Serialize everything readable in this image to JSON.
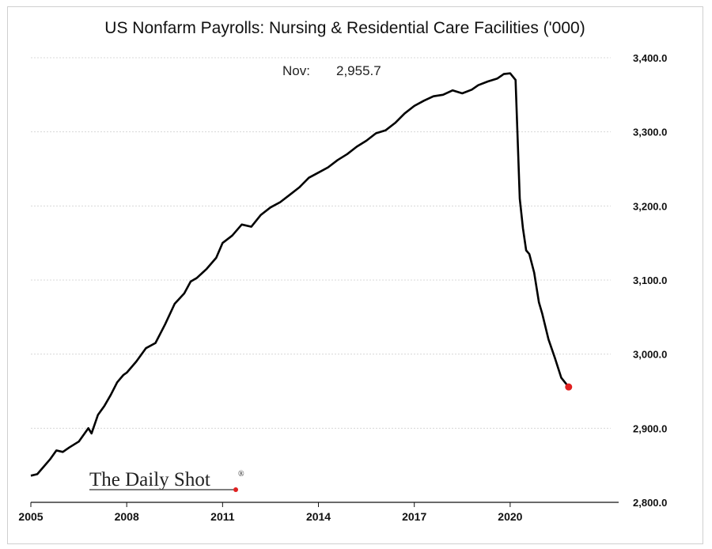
{
  "chart_data": {
    "type": "line",
    "title": "US Nonfarm Payrolls: Nursing & Residential Care Facilities ('000)",
    "annotation": {
      "label": "Nov:",
      "value": "2,955.7"
    },
    "xlabel": "",
    "ylabel": "",
    "ylim": [
      2800,
      3400
    ],
    "yticks": [
      2800,
      2900,
      3000,
      3100,
      3200,
      3300,
      3400
    ],
    "ytick_labels": [
      "2,800.0",
      "2,900.0",
      "3,000.0",
      "3,100.0",
      "3,200.0",
      "3,300.0",
      "3,400.0"
    ],
    "xlim": [
      2005.0,
      2022.9
    ],
    "xticks": [
      2005,
      2008,
      2011,
      2014,
      2017,
      2020
    ],
    "xtick_labels": [
      "2005",
      "2008",
      "2011",
      "2014",
      "2017",
      "2020"
    ],
    "y_axis_position": "right",
    "grid": true,
    "line_color": "#000000",
    "marker_color": "#e02020",
    "last_point": {
      "x": 2021.83,
      "y": 2955.7
    },
    "series": [
      {
        "x": [
          2005.0,
          2005.2,
          2005.4,
          2005.6,
          2005.8,
          2006.0,
          2006.2,
          2006.5,
          2006.8,
          2006.9,
          2007.1,
          2007.3,
          2007.5,
          2007.7,
          2007.9,
          2008.0,
          2008.3,
          2008.6,
          2008.9,
          2009.2,
          2009.5,
          2009.8,
          2010.0,
          2010.2,
          2010.5,
          2010.8,
          2011.0,
          2011.3,
          2011.6,
          2011.9,
          2012.2,
          2012.5,
          2012.8,
          2013.1,
          2013.4,
          2013.7,
          2014.0,
          2014.3,
          2014.6,
          2014.9,
          2015.2,
          2015.5,
          2015.8,
          2016.1,
          2016.4,
          2016.7,
          2017.0,
          2017.3,
          2017.6,
          2017.9,
          2018.2,
          2018.5,
          2018.8,
          2019.0,
          2019.3,
          2019.6,
          2019.8,
          2020.0,
          2020.17,
          2020.3,
          2020.4,
          2020.5,
          2020.6,
          2020.75,
          2020.9,
          2021.0,
          2021.2,
          2021.4,
          2021.6,
          2021.83
        ],
        "y": [
          2836,
          2838,
          2848,
          2858,
          2870,
          2868,
          2874,
          2882,
          2900,
          2893,
          2918,
          2930,
          2945,
          2962,
          2972,
          2975,
          2990,
          3008,
          3015,
          3040,
          3068,
          3082,
          3098,
          3103,
          3115,
          3130,
          3150,
          3160,
          3175,
          3172,
          3188,
          3198,
          3205,
          3215,
          3225,
          3238,
          3245,
          3252,
          3262,
          3270,
          3280,
          3288,
          3298,
          3302,
          3312,
          3325,
          3335,
          3342,
          3348,
          3350,
          3356,
          3352,
          3357,
          3363,
          3368,
          3372,
          3378,
          3379,
          3370,
          3210,
          3170,
          3140,
          3135,
          3110,
          3070,
          3055,
          3020,
          2995,
          2968,
          2955.7
        ]
      }
    ]
  },
  "logo": {
    "text": "The Daily Shot",
    "reg": "®"
  }
}
